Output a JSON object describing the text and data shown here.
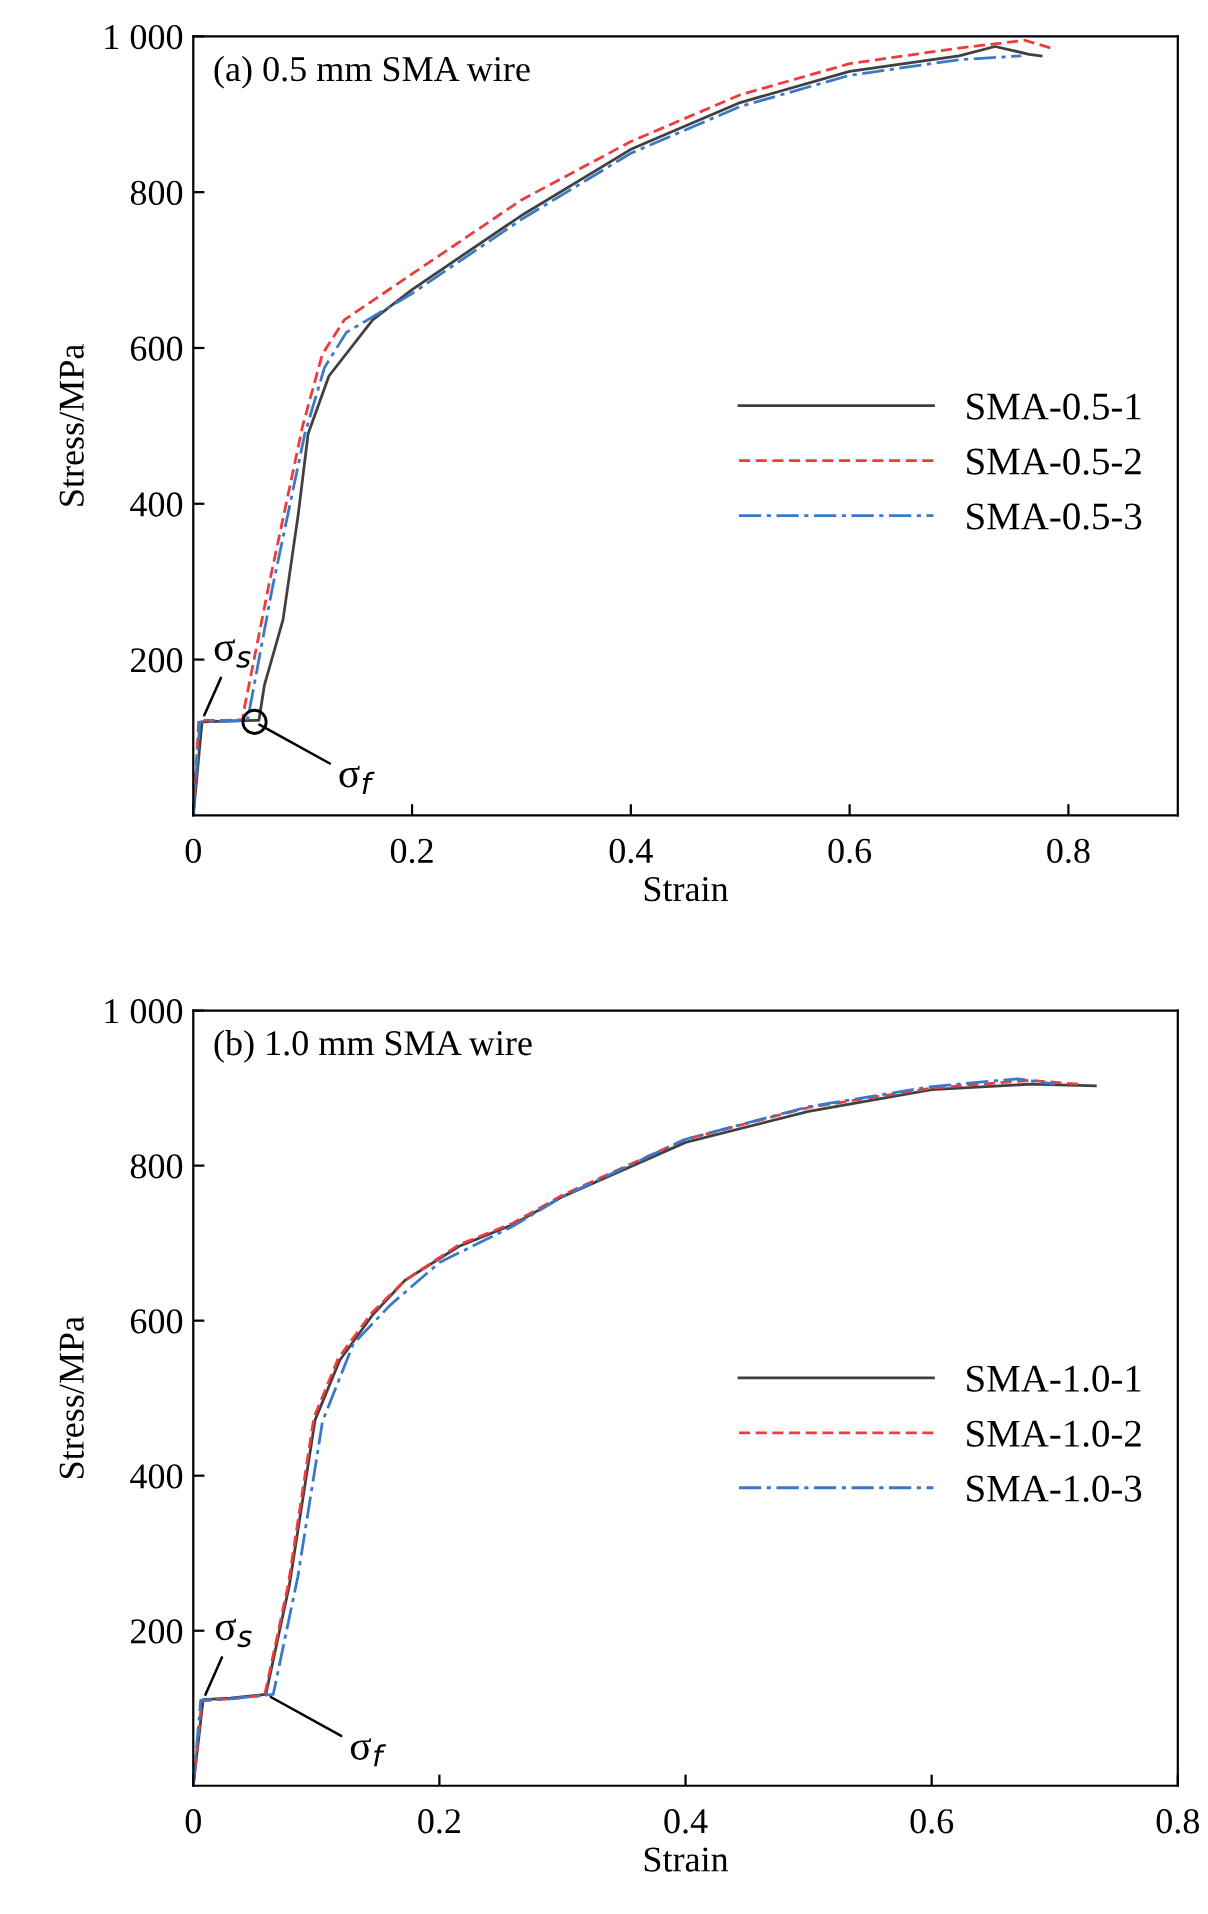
{
  "chart_data": [
    {
      "type": "line",
      "title": "(a) 0.5 mm SMA wire",
      "xlabel": "Strain",
      "ylabel": "Stress/MPa",
      "xlim": [
        0,
        0.9
      ],
      "ylim": [
        0,
        1000
      ],
      "xticks": [
        0,
        0.2,
        0.4,
        0.6,
        0.8
      ],
      "yticks": [
        200,
        400,
        600,
        800,
        {
          "value": 1000,
          "label": "1 000"
        }
      ],
      "legend": "right",
      "grid": false,
      "annotations": [
        {
          "text": "σ$_{s}$",
          "x": 0.008,
          "y": 122
        },
        {
          "text": "σ$_{f}$",
          "x": 0.056,
          "y": 120
        }
      ],
      "series": [
        {
          "name": "SMA-0.5-1",
          "color": "#404040",
          "line_style": "solid",
          "x": [
            0,
            0.008,
            0.03,
            0.06,
            0.065,
            0.082,
            0.096,
            0.105,
            0.124,
            0.164,
            0.2,
            0.3,
            0.4,
            0.5,
            0.6,
            0.7,
            0.733,
            0.764,
            0.775
          ],
          "values": [
            0,
            120,
            121,
            122,
            167,
            251,
            387,
            490,
            564,
            636,
            675,
            770,
            855,
            915,
            955,
            975,
            987,
            977,
            975
          ]
        },
        {
          "name": "SMA-0.5-2",
          "color": "#ee3b3b",
          "line_style": "dashed",
          "x": [
            0,
            0.005,
            0.03,
            0.045,
            0.047,
            0.069,
            0.1,
            0.118,
            0.138,
            0.2,
            0.3,
            0.4,
            0.5,
            0.6,
            0.7,
            0.76,
            0.784
          ],
          "values": [
            0,
            122,
            122,
            123,
            140,
            295,
            500,
            592,
            636,
            695,
            790,
            865,
            925,
            965,
            985,
            995,
            985
          ]
        },
        {
          "name": "SMA-0.5-3",
          "color": "#3a78c8",
          "line_style": "dashdot",
          "x": [
            0,
            0.006,
            0.03,
            0.048,
            0.05,
            0.072,
            0.102,
            0.12,
            0.14,
            0.2,
            0.3,
            0.4,
            0.5,
            0.6,
            0.7,
            0.757
          ],
          "values": [
            0,
            120,
            121,
            122,
            125,
            290,
            490,
            575,
            620,
            670,
            765,
            850,
            910,
            950,
            970,
            975
          ]
        },
        {
          "type": "scatter",
          "marker": "circle",
          "color": "#000000",
          "x": [
            0.056
          ],
          "values": [
            120
          ]
        }
      ]
    },
    {
      "type": "line",
      "title": "(b) 1.0 mm SMA wire",
      "xlabel": "Strain",
      "ylabel": "Stress/MPa",
      "xlim": [
        0,
        0.8
      ],
      "ylim": [
        0,
        1000
      ],
      "xticks": [
        0,
        0.2,
        0.4,
        0.6,
        0.8
      ],
      "yticks": [
        200,
        400,
        600,
        800,
        {
          "value": 1000,
          "label": "1 000"
        }
      ],
      "legend": "right",
      "grid": false,
      "annotations": [
        {
          "text": "σ$_{s}$",
          "x": 0.008,
          "y": 111
        },
        {
          "text": "σ$_{f}$",
          "x": 0.059,
          "y": 118
        }
      ],
      "series": [
        {
          "name": "SMA-1.0-1",
          "color": "#404040",
          "line_style": "solid",
          "x": [
            0,
            0.008,
            0.03,
            0.059,
            0.078,
            0.099,
            0.119,
            0.146,
            0.172,
            0.216,
            0.26,
            0.3,
            0.4,
            0.5,
            0.6,
            0.68,
            0.733
          ],
          "values": [
            0,
            111,
            113,
            118,
            258,
            472,
            549,
            608,
            652,
            696,
            724,
            760,
            830,
            870,
            898,
            905,
            903
          ]
        },
        {
          "name": "SMA-1.0-2",
          "color": "#ee3b3b",
          "line_style": "dashed",
          "x": [
            0,
            0.007,
            0.03,
            0.058,
            0.077,
            0.098,
            0.118,
            0.145,
            0.172,
            0.216,
            0.26,
            0.3,
            0.4,
            0.5,
            0.6,
            0.68,
            0.72
          ],
          "values": [
            0,
            110,
            112,
            117,
            258,
            475,
            552,
            610,
            652,
            698,
            726,
            762,
            834,
            875,
            900,
            910,
            905
          ]
        },
        {
          "name": "SMA-1.0-3",
          "color": "#3a78c8",
          "line_style": "dashdot",
          "x": [
            0,
            0.006,
            0.03,
            0.065,
            0.085,
            0.105,
            0.13,
            0.16,
            0.2,
            0.26,
            0.3,
            0.4,
            0.5,
            0.6,
            0.67,
            0.7
          ],
          "values": [
            0,
            110,
            112,
            118,
            270,
            470,
            570,
            620,
            675,
            722,
            760,
            834,
            876,
            902,
            912,
            905
          ]
        }
      ]
    }
  ]
}
